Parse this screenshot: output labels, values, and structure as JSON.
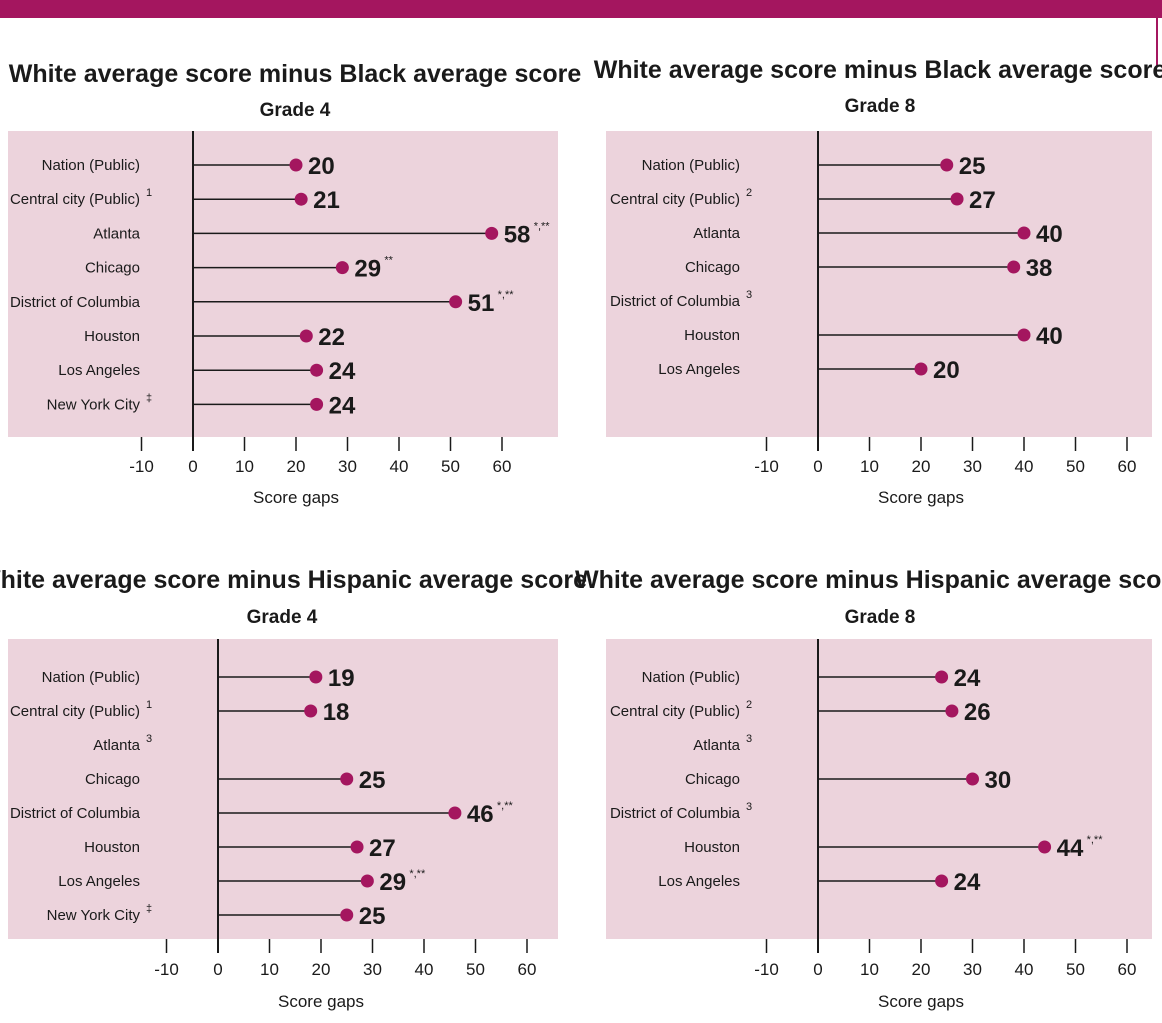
{
  "colors": {
    "accent": "#a4165f",
    "panel": "#ecd3dc",
    "dot": "#a4165f",
    "line": "#1a1a1a"
  },
  "chart_data": [
    {
      "type": "lollipop",
      "title": "White average score minus Black average score",
      "subtitle": "Grade 4",
      "xlabel": "Score gaps",
      "xlim": [
        -10,
        60
      ],
      "ticks": [
        "-10",
        "0",
        "10",
        "20",
        "30",
        "40",
        "50",
        "60"
      ],
      "categories": [
        "Nation (Public)",
        "Central city (Public)",
        "Atlanta",
        "Chicago",
        "District of Columbia",
        "Houston",
        "Los Angeles",
        "New York City"
      ],
      "category_footnotes": [
        "",
        "1",
        "",
        "",
        "",
        "",
        "",
        "‡"
      ],
      "values": [
        20,
        21,
        58,
        29,
        51,
        22,
        24,
        24
      ],
      "value_labels": [
        "20",
        "21",
        "58",
        "29",
        "51",
        "22",
        "24",
        "24"
      ],
      "value_footnotes": [
        "",
        "",
        "*,**",
        "**",
        "*,**",
        "",
        "",
        ""
      ]
    },
    {
      "type": "lollipop",
      "title": "White average score minus Black average score",
      "subtitle": "Grade 8",
      "xlabel": "Score gaps",
      "xlim": [
        -10,
        60
      ],
      "ticks": [
        "-10",
        "0",
        "10",
        "20",
        "30",
        "40",
        "50",
        "60"
      ],
      "categories": [
        "Nation (Public)",
        "Central city (Public)",
        "Atlanta",
        "Chicago",
        "District of Columbia",
        "Houston",
        "Los Angeles"
      ],
      "category_footnotes": [
        "",
        "2",
        "",
        "",
        "3",
        "",
        ""
      ],
      "values": [
        25,
        27,
        40,
        38,
        null,
        40,
        20
      ],
      "value_labels": [
        "25",
        "27",
        "40",
        "38",
        "",
        "40",
        "20"
      ],
      "value_footnotes": [
        "",
        "",
        "",
        "",
        "",
        "",
        ""
      ]
    },
    {
      "type": "lollipop",
      "title": "White average score minus Hispanic average score",
      "subtitle": "Grade 4",
      "xlabel": "Score gaps",
      "xlim": [
        -10,
        60
      ],
      "ticks": [
        "-10",
        "0",
        "10",
        "20",
        "30",
        "40",
        "50",
        "60"
      ],
      "categories": [
        "Nation (Public)",
        "Central city (Public)",
        "Atlanta",
        "Chicago",
        "District of Columbia",
        "Houston",
        "Los Angeles",
        "New York City"
      ],
      "category_footnotes": [
        "",
        "1",
        "3",
        "",
        "",
        "",
        "",
        "‡"
      ],
      "values": [
        19,
        18,
        null,
        25,
        46,
        27,
        29,
        25
      ],
      "value_labels": [
        "19",
        "18",
        "",
        "25",
        "46",
        "27",
        "29",
        "25"
      ],
      "value_footnotes": [
        "",
        "",
        "",
        "",
        "*,**",
        "",
        "*,**",
        ""
      ]
    },
    {
      "type": "lollipop",
      "title": "White average score minus Hispanic average score",
      "subtitle": "Grade 8",
      "xlabel": "Score gaps",
      "xlim": [
        -10,
        60
      ],
      "ticks": [
        "-10",
        "0",
        "10",
        "20",
        "30",
        "40",
        "50",
        "60"
      ],
      "categories": [
        "Nation (Public)",
        "Central city (Public)",
        "Atlanta",
        "Chicago",
        "District of Columbia",
        "Houston",
        "Los Angeles"
      ],
      "category_footnotes": [
        "",
        "2",
        "3",
        "",
        "3",
        "",
        ""
      ],
      "values": [
        24,
        26,
        null,
        30,
        null,
        44,
        24
      ],
      "value_labels": [
        "24",
        "26",
        "",
        "30",
        "",
        "44",
        "24"
      ],
      "value_footnotes": [
        "",
        "",
        "",
        "",
        "",
        "*,**",
        ""
      ]
    }
  ]
}
